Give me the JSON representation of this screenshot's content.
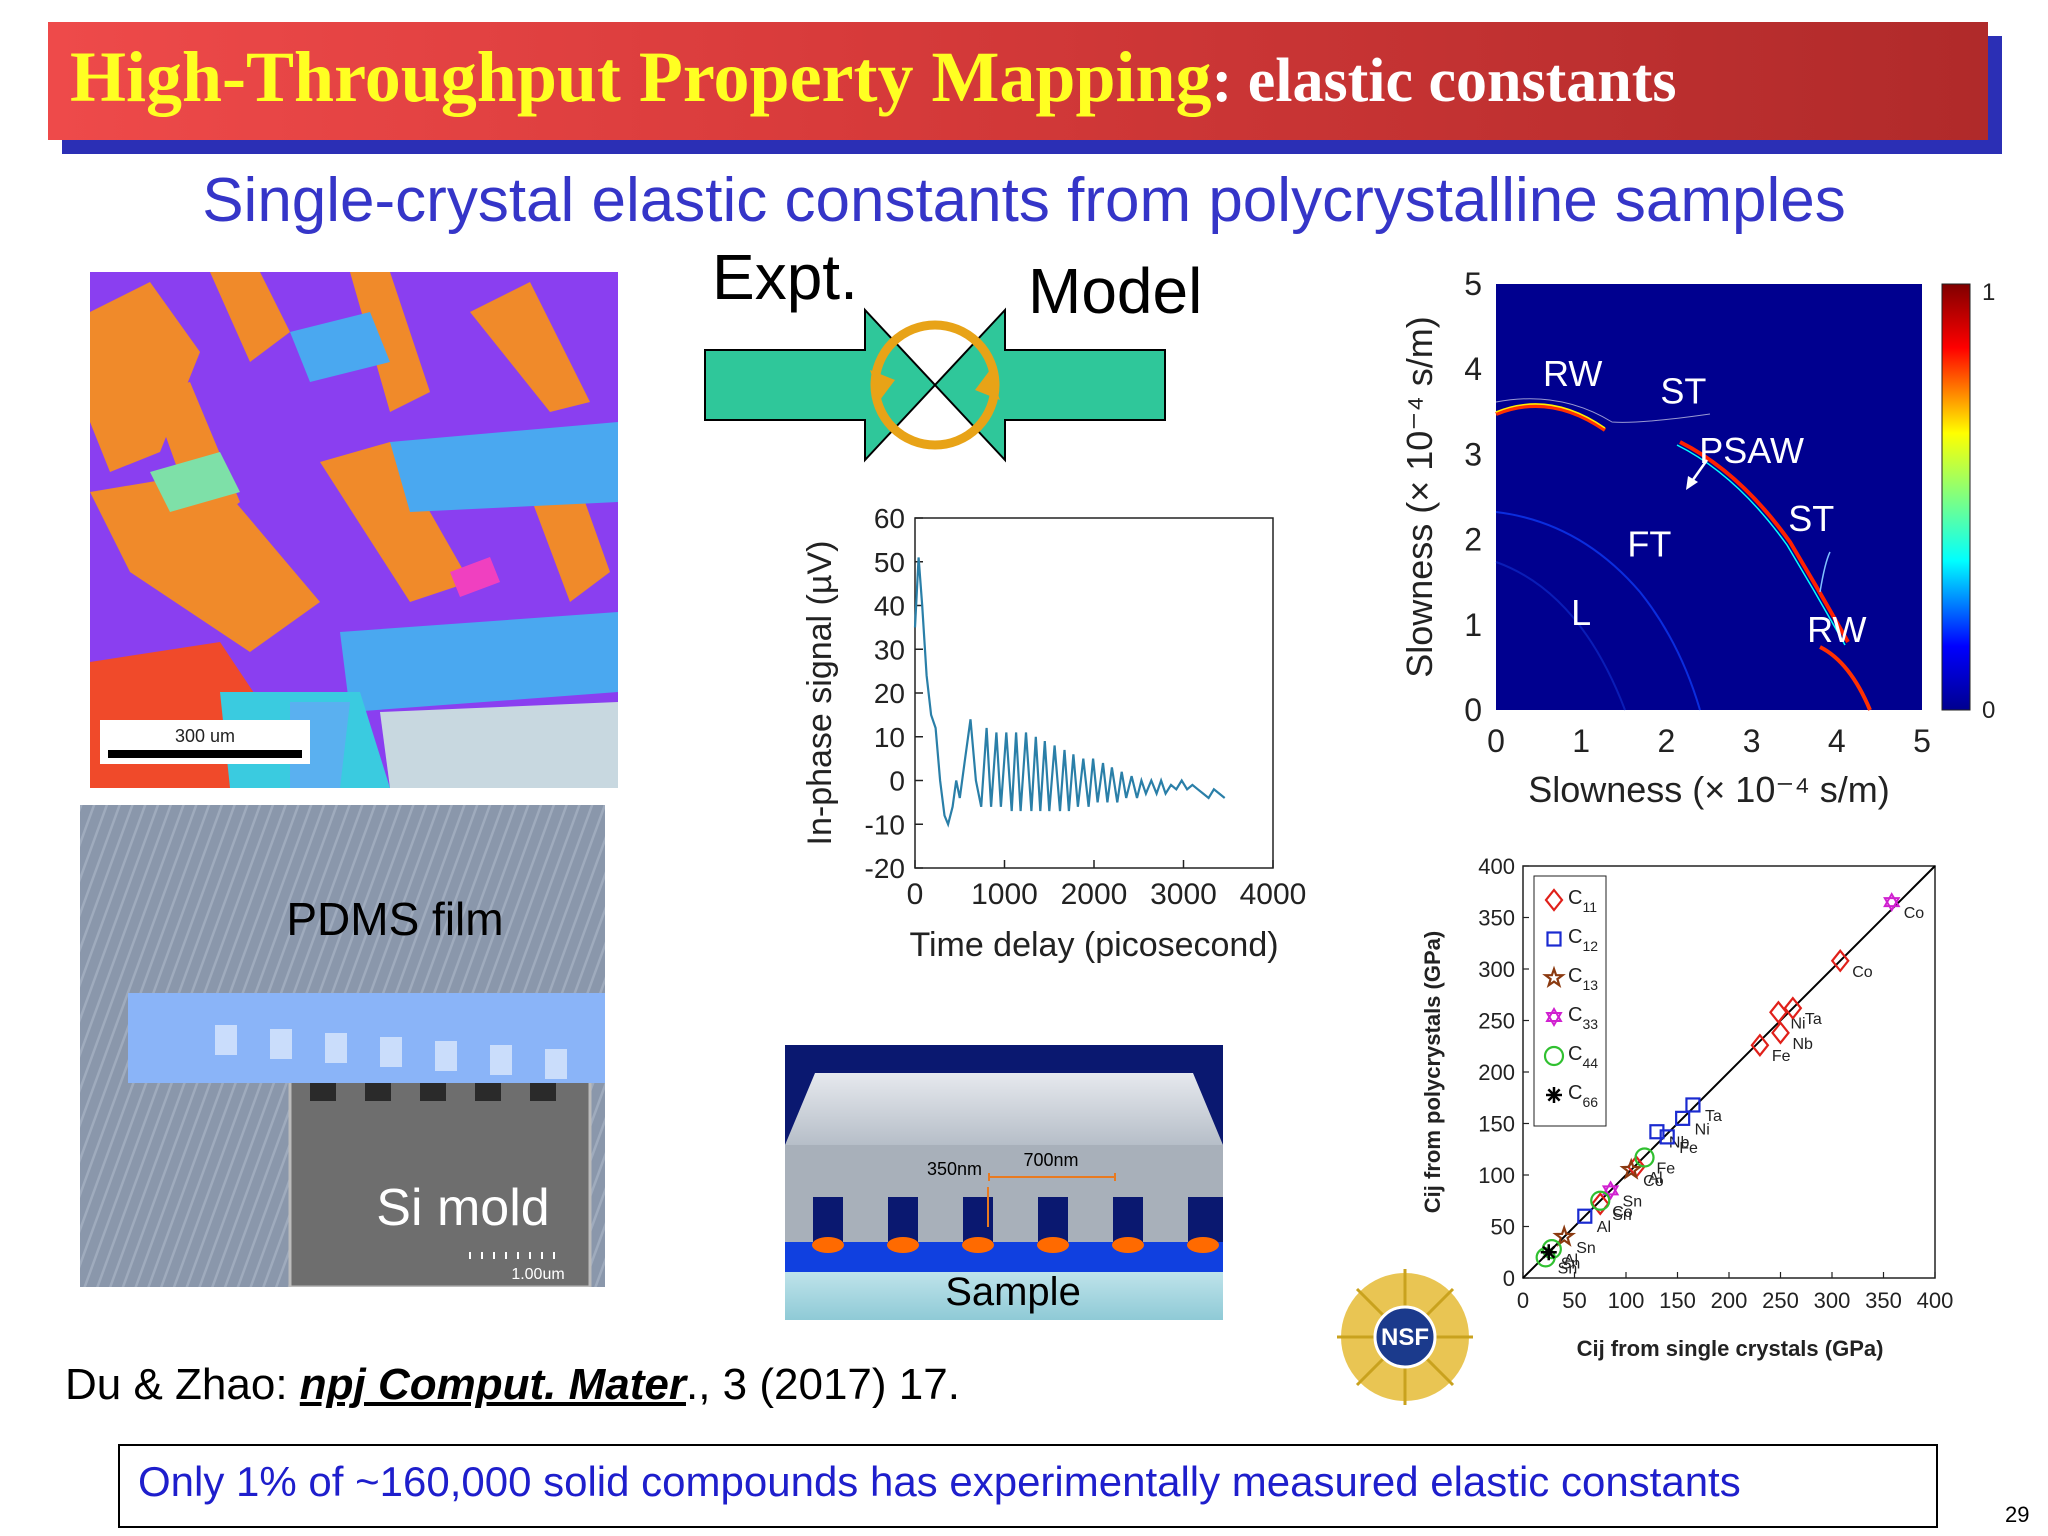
{
  "header": {
    "title_main": "High-Throughput Property Mapping",
    "title_suffix": ": elastic constants",
    "subtitle": "Single-crystal elastic constants from polycrystalline samples",
    "colors": {
      "title_bar": "#d83b3b",
      "title_main": "#ffff22",
      "title_suffix": "#ffffff",
      "subtitle": "#3535c8"
    }
  },
  "ebsd_map": {
    "scale_label": "300 um"
  },
  "loop_diagram": {
    "left_label": "Expt.",
    "right_label": "Model",
    "arrow_color": "#2fc79a",
    "cycle_color": "#e8a317"
  },
  "pdms_figure": {
    "film_label": "PDMS film",
    "mold_label": "Si mold",
    "scale_label": "1.00um"
  },
  "sample_figure": {
    "pitch_label": "700nm",
    "depth_label": "350nm",
    "sample_label": "Sample"
  },
  "reference": {
    "authors": "Du & Zhao: ",
    "journal": "npj Comput. Mater",
    "rest": "., 3 (2017) 17."
  },
  "note": "Only 1% of ~160,000 solid compounds has experimentally measured elastic constants",
  "page_number": "29",
  "logo": {
    "text": "NSF"
  },
  "chart_data": [
    {
      "type": "line",
      "xlabel": "Time delay (picosecond)",
      "ylabel": "In-phase signal (µV)",
      "xlim": [
        0,
        4000
      ],
      "ylim": [
        -20,
        60
      ],
      "xticks": [
        0,
        1000,
        2000,
        3000,
        4000
      ],
      "yticks": [
        -20,
        -10,
        0,
        10,
        20,
        30,
        40,
        50,
        60
      ],
      "series": [
        {
          "color": "#2a7fa8",
          "x": [
            0,
            40,
            80,
            130,
            180,
            230,
            280,
            330,
            370,
            420,
            460,
            500,
            560,
            620,
            680,
            740,
            800,
            850,
            910,
            960,
            1020,
            1080,
            1130,
            1180,
            1240,
            1300,
            1350,
            1400,
            1450,
            1500,
            1560,
            1620,
            1670,
            1720,
            1770,
            1820,
            1880,
            1940,
            1990,
            2040,
            2100,
            2150,
            2200,
            2260,
            2310,
            2360,
            2420,
            2480,
            2530,
            2580,
            2640,
            2700,
            2750,
            2800,
            2860,
            2920,
            2980,
            3040,
            3100,
            3160,
            3220,
            3280,
            3340,
            3400,
            3460
          ],
          "y": [
            35,
            51,
            40,
            24,
            15,
            12,
            0,
            -8,
            -10,
            -6,
            0,
            -4,
            5,
            14,
            0,
            -6,
            12,
            -6,
            11,
            -6,
            11,
            -7,
            11,
            -7,
            11,
            -7,
            10,
            -7,
            9,
            -7,
            8,
            -7,
            7,
            -7,
            6,
            -6,
            5,
            -6,
            5,
            -5,
            4,
            -5,
            3,
            -5,
            2,
            -4,
            1,
            -4,
            0,
            -3,
            0,
            -3,
            0,
            -3,
            -1,
            -2,
            0,
            -2,
            -1,
            -2,
            -3,
            -4,
            -2,
            -3,
            -4
          ]
        }
      ]
    },
    {
      "type": "heatmap",
      "xlabel": "Slowness (× 10⁻⁴ s/m)",
      "ylabel": "Slowness (× 10⁻⁴ s/m)",
      "xlim": [
        0,
        5
      ],
      "ylim": [
        0,
        5
      ],
      "xticks": [
        0,
        1,
        2,
        3,
        4,
        5
      ],
      "yticks": [
        0,
        1,
        2,
        3,
        4,
        5
      ],
      "colorbar": {
        "min_label": "0",
        "max_label": "1"
      },
      "annotations": [
        {
          "text": "RW",
          "x": 0.9,
          "y": 3.8
        },
        {
          "text": "ST",
          "x": 2.2,
          "y": 3.6
        },
        {
          "text": "PSAW",
          "x": 3.0,
          "y": 2.9
        },
        {
          "text": "ST",
          "x": 3.7,
          "y": 2.1
        },
        {
          "text": "FT",
          "x": 1.8,
          "y": 1.8
        },
        {
          "text": "L",
          "x": 1.0,
          "y": 1.0
        },
        {
          "text": "RW",
          "x": 4.0,
          "y": 0.8
        }
      ]
    },
    {
      "type": "scatter",
      "xlabel": "Cij from single crystals (GPa)",
      "ylabel": "Cij from polycrystals (GPa)",
      "xlim": [
        0,
        400
      ],
      "ylim": [
        0,
        400
      ],
      "xticks": [
        0,
        50,
        100,
        150,
        200,
        250,
        300,
        350,
        400
      ],
      "yticks": [
        0,
        50,
        100,
        150,
        200,
        250,
        300,
        350,
        400
      ],
      "legend_position": "top-left",
      "series": [
        {
          "name": "C11",
          "color": "#e0201a",
          "marker": "diamond",
          "points": [
            [
              230,
              226,
              "Fe"
            ],
            [
              248,
              258,
              "Ni"
            ],
            [
              250,
              238,
              "Nb"
            ],
            [
              262,
              262,
              "Ta"
            ],
            [
              308,
              308,
              "Co"
            ],
            [
              110,
              108,
              "Al"
            ],
            [
              75,
              72,
              "Sn"
            ]
          ],
          "labels": [
            "Fe",
            "Ni",
            "Nb",
            "Ta",
            "Co",
            "Al",
            "Sn"
          ]
        },
        {
          "name": "C12",
          "color": "#1a2ad0",
          "marker": "square",
          "points": [
            [
              130,
              142,
              "Nb"
            ],
            [
              140,
              137,
              "Fe"
            ],
            [
              155,
              155,
              "Ni"
            ],
            [
              165,
              168,
              "Ta"
            ],
            [
              60,
              60,
              "Al"
            ]
          ],
          "labels": [
            "Nb",
            "Fe",
            "Ni",
            "Ta",
            "Al"
          ]
        },
        {
          "name": "C13",
          "color": "#8b3a10",
          "marker": "star",
          "points": [
            [
              105,
              105,
              "Co"
            ],
            [
              40,
              40,
              "Sn"
            ]
          ],
          "labels": [
            "Co",
            "Sn"
          ]
        },
        {
          "name": "C33",
          "color": "#d020d0",
          "marker": "hexagram",
          "points": [
            [
              358,
              365,
              "Co"
            ],
            [
              85,
              85,
              "Sn"
            ]
          ],
          "labels": [
            "Co",
            "Sn"
          ]
        },
        {
          "name": "C44",
          "color": "#30c030",
          "marker": "circle",
          "points": [
            [
              118,
              117,
              "Fe"
            ],
            [
              75,
              75,
              "Co"
            ],
            [
              28,
              28,
              "Al"
            ],
            [
              22,
              20,
              "Sn"
            ]
          ],
          "labels": [
            "Fe",
            "Co",
            "Al",
            "Sn"
          ]
        },
        {
          "name": "C66",
          "color": "#000000",
          "marker": "asterisk",
          "points": [
            [
              25,
              25,
              "Sn"
            ]
          ],
          "labels": [
            "Sn"
          ]
        }
      ]
    }
  ]
}
